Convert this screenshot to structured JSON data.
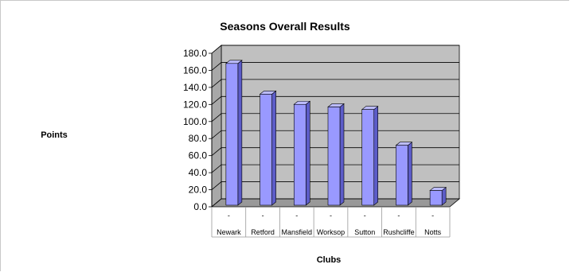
{
  "chart_data": {
    "type": "bar",
    "title": "Seasons Overall Results",
    "xlabel": "Clubs",
    "ylabel": "Points",
    "categories": [
      "Newark",
      "Retford",
      "Mansfield",
      "Worksop",
      "Sutton",
      "Rushcliffe",
      "Notts"
    ],
    "values": [
      169,
      133,
      121,
      118,
      115,
      73,
      20
    ],
    "category_marks": [
      "-",
      "-",
      "-",
      "-",
      "-",
      "-",
      "-"
    ],
    "ylim": [
      0,
      180
    ],
    "yticks": [
      "0.0",
      "20.0",
      "40.0",
      "60.0",
      "80.0",
      "100.0",
      "120.0",
      "140.0",
      "160.0",
      "180.0"
    ],
    "grid": true,
    "style": "3d-column",
    "colors": {
      "bar_front": "#9999ff",
      "bar_side": "#5c5cc8",
      "bar_top": "#bcbcff",
      "wall": "#c0c0c0",
      "floor": "#999999"
    }
  }
}
